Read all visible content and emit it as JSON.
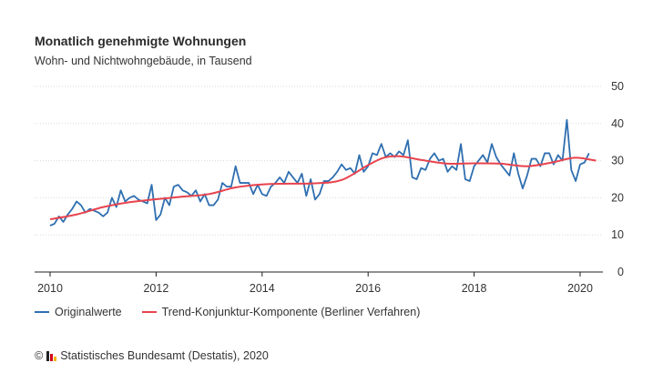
{
  "header": {
    "title": "Monatlich genehmigte Wohnungen",
    "subtitle": "Wohn- und Nichtwohngebäude, in Tausend"
  },
  "legend": {
    "original_label": "Originalwerte",
    "trend_label": "Trend-Konjunktur-Komponente (Berliner Verfahren)"
  },
  "footer": {
    "copyright_symbol": "©",
    "source": "Statistisches Bundesamt (Destatis), 2020"
  },
  "colors": {
    "original": "#2f6fb0",
    "trend": "#e8434d",
    "grid": "#d9d9d9",
    "axis": "#222222"
  },
  "chart_data": {
    "type": "line",
    "title": "Monatlich genehmigte Wohnungen",
    "subtitle": "Wohn- und Nichtwohngebäude, in Tausend",
    "x_ticks": [
      2010,
      2012,
      2014,
      2016,
      2018,
      2020
    ],
    "y_ticks": [
      0,
      10,
      20,
      30,
      40,
      50
    ],
    "xlim": [
      2009.8,
      2020.7
    ],
    "ylim": [
      0,
      50
    ],
    "y_axis_side": "right",
    "grid": "horizontal",
    "legend_position": "bottom",
    "series": [
      {
        "name": "Originalwerte",
        "x_start": 2010.0,
        "x_step_months": 1,
        "values": [
          12.5,
          13,
          15,
          13.5,
          15.5,
          17,
          19,
          18,
          16,
          17,
          16.5,
          16,
          15,
          16,
          20,
          17.5,
          22,
          19,
          20,
          20.5,
          19.5,
          19,
          18.5,
          23.5,
          14,
          15.5,
          20,
          18,
          23,
          23.5,
          22,
          21.5,
          20.5,
          22,
          19,
          21,
          18,
          18,
          19.5,
          24,
          23,
          23,
          28.5,
          24,
          24,
          24,
          21,
          23.5,
          21,
          20.5,
          23,
          24,
          25.5,
          24,
          27,
          25.5,
          24,
          26.5,
          20.5,
          25,
          19.5,
          21,
          24.5,
          24.5,
          25.5,
          27,
          29,
          27.5,
          28,
          26.5,
          31.5,
          27,
          28.5,
          32,
          31.5,
          34.5,
          31,
          32,
          31,
          32.5,
          31.5,
          35.5,
          25.5,
          25,
          28,
          27.5,
          30.5,
          32,
          30,
          30.5,
          27,
          28.5,
          27.5,
          34.5,
          25,
          24.5,
          28.5,
          30,
          31.5,
          29.5,
          34.5,
          31,
          29,
          27.5,
          26,
          32,
          26.5,
          22.5,
          26,
          30.5,
          30.5,
          28.5,
          32,
          32,
          29,
          31.5,
          30,
          41,
          27.5,
          24.5,
          29,
          29.5,
          32
        ]
      },
      {
        "name": "Trend-Konjunktur-Komponente (Berliner Verfahren)",
        "x": [
          2010.0,
          2010.5,
          2011.0,
          2011.5,
          2012.0,
          2012.5,
          2013.0,
          2013.5,
          2014.0,
          2014.5,
          2015.0,
          2015.5,
          2016.0,
          2016.3,
          2016.6,
          2017.0,
          2017.5,
          2018.0,
          2018.5,
          2019.0,
          2019.5,
          2019.9,
          2020.3
        ],
        "values": [
          14.2,
          15.5,
          17.5,
          18.8,
          19.6,
          20.3,
          21.0,
          22.8,
          23.6,
          23.8,
          23.9,
          24.8,
          28.8,
          30.8,
          31.2,
          30.2,
          29.2,
          29.3,
          29.2,
          28.5,
          29.6,
          30.8,
          30.0
        ]
      }
    ]
  }
}
